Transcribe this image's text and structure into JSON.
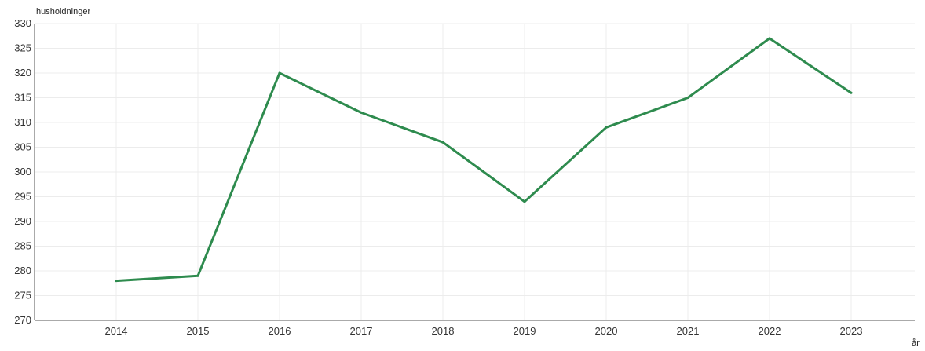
{
  "chart_data": {
    "type": "line",
    "title": "",
    "ylabel": "husholdninger",
    "xlabel": "år",
    "ylim": [
      270,
      330
    ],
    "ytick_step": 5,
    "grid": true,
    "x": [
      2014,
      2015,
      2016,
      2017,
      2018,
      2019,
      2020,
      2021,
      2022,
      2023
    ],
    "series": [
      {
        "values": [
          278,
          279,
          320,
          312,
          306,
          294,
          309,
          315,
          327,
          316
        ],
        "color": "#2e8b4e"
      }
    ]
  }
}
